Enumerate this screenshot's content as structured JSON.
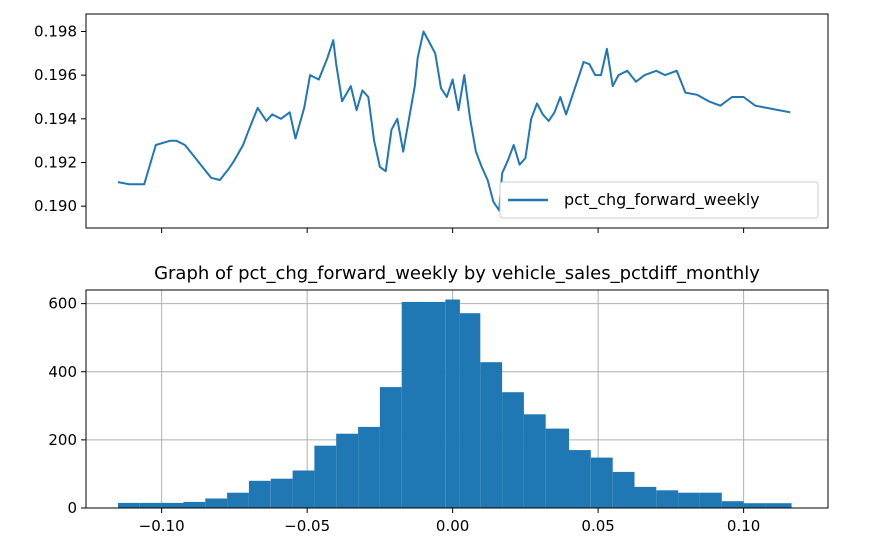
{
  "chart_data": [
    {
      "type": "line",
      "title": "",
      "xlabel": "",
      "ylabel": "",
      "xlim": [
        -0.126,
        0.129
      ],
      "ylim": [
        0.189,
        0.1988
      ],
      "yticks": [
        0.19,
        0.192,
        0.194,
        0.196,
        0.198
      ],
      "ytick_labels": [
        "0.190",
        "0.192",
        "0.194",
        "0.196",
        "0.198"
      ],
      "xticks": [
        -0.1,
        -0.05,
        0.0,
        0.05,
        0.1
      ],
      "show_xtick_labels": false,
      "grid": false,
      "legend_position": "lower-right",
      "series": [
        {
          "name": "pct_chg_forward_weekly",
          "color": "#1f77b4",
          "x": [
            -0.115,
            -0.111,
            -0.106,
            -0.102,
            -0.097,
            -0.095,
            -0.092,
            -0.089,
            -0.086,
            -0.083,
            -0.08,
            -0.077,
            -0.075,
            -0.072,
            -0.07,
            -0.067,
            -0.064,
            -0.062,
            -0.059,
            -0.056,
            -0.054,
            -0.051,
            -0.049,
            -0.046,
            -0.043,
            -0.041,
            -0.04,
            -0.038,
            -0.035,
            -0.033,
            -0.031,
            -0.029,
            -0.027,
            -0.025,
            -0.023,
            -0.021,
            -0.019,
            -0.017,
            -0.015,
            -0.013,
            -0.012,
            -0.01,
            -0.008,
            -0.006,
            -0.004,
            -0.002,
            0.0,
            0.002,
            0.004,
            0.006,
            0.008,
            0.01,
            0.012,
            0.014,
            0.016,
            0.017,
            0.019,
            0.021,
            0.023,
            0.025,
            0.027,
            0.029,
            0.031,
            0.033,
            0.035,
            0.037,
            0.039,
            0.041,
            0.043,
            0.045,
            0.047,
            0.049,
            0.051,
            0.053,
            0.055,
            0.057,
            0.06,
            0.063,
            0.066,
            0.07,
            0.073,
            0.077,
            0.08,
            0.084,
            0.088,
            0.092,
            0.096,
            0.1,
            0.104,
            0.108,
            0.112,
            0.116
          ],
          "y": [
            0.1911,
            0.191,
            0.191,
            0.1928,
            0.193,
            0.193,
            0.1928,
            0.1923,
            0.1918,
            0.1913,
            0.1912,
            0.1917,
            0.1921,
            0.1928,
            0.1935,
            0.1945,
            0.1939,
            0.1942,
            0.194,
            0.1943,
            0.1931,
            0.1945,
            0.196,
            0.1958,
            0.1968,
            0.1976,
            0.1965,
            0.1948,
            0.1955,
            0.1944,
            0.1953,
            0.195,
            0.193,
            0.1918,
            0.1916,
            0.1935,
            0.194,
            0.1925,
            0.194,
            0.1955,
            0.1968,
            0.198,
            0.1975,
            0.197,
            0.1954,
            0.195,
            0.1958,
            0.1944,
            0.196,
            0.194,
            0.1925,
            0.1918,
            0.1912,
            0.1902,
            0.1898,
            0.1915,
            0.1921,
            0.1928,
            0.1919,
            0.1922,
            0.194,
            0.1947,
            0.1942,
            0.1939,
            0.1943,
            0.195,
            0.1942,
            0.195,
            0.1958,
            0.1966,
            0.1965,
            0.196,
            0.196,
            0.1972,
            0.1955,
            0.196,
            0.1962,
            0.1957,
            0.196,
            0.1962,
            0.196,
            0.1962,
            0.1952,
            0.1951,
            0.1948,
            0.1946,
            0.195,
            0.195,
            0.1946,
            0.1945,
            0.1944,
            0.1943
          ]
        }
      ]
    },
    {
      "type": "bar",
      "title": "Graph of pct_chg_forward_weekly by vehicle_sales_pctdiff_monthly",
      "xlabel": "",
      "ylabel": "",
      "xlim": [
        -0.126,
        0.129
      ],
      "ylim": [
        0,
        640
      ],
      "yticks": [
        0,
        200,
        400,
        600
      ],
      "ytick_labels": [
        "0",
        "200",
        "400",
        "600"
      ],
      "xticks": [
        -0.1,
        -0.05,
        0.0,
        0.05,
        0.1
      ],
      "xtick_labels": [
        "−0.10",
        "−0.05",
        "0.00",
        "0.05",
        "0.10"
      ],
      "grid": true,
      "bar_color": "#1f77b4",
      "bins": [
        {
          "x0": -0.115,
          "x1": -0.1075,
          "value": 15
        },
        {
          "x0": -0.1075,
          "x1": -0.1,
          "value": 15
        },
        {
          "x0": -0.1,
          "x1": -0.0925,
          "value": 15
        },
        {
          "x0": -0.0925,
          "x1": -0.085,
          "value": 18
        },
        {
          "x0": -0.085,
          "x1": -0.0775,
          "value": 28
        },
        {
          "x0": -0.0775,
          "x1": -0.07,
          "value": 45
        },
        {
          "x0": -0.07,
          "x1": -0.0625,
          "value": 80
        },
        {
          "x0": -0.0625,
          "x1": -0.055,
          "value": 86
        },
        {
          "x0": -0.055,
          "x1": -0.0475,
          "value": 110
        },
        {
          "x0": -0.0475,
          "x1": -0.04,
          "value": 183
        },
        {
          "x0": -0.04,
          "x1": -0.0325,
          "value": 218
        },
        {
          "x0": -0.0325,
          "x1": -0.025,
          "value": 238
        },
        {
          "x0": -0.025,
          "x1": -0.0175,
          "value": 355
        },
        {
          "x0": -0.0175,
          "x1": -0.01,
          "value": 605
        },
        {
          "x0": -0.01,
          "x1": -0.0025,
          "value": 605
        },
        {
          "x0": -0.0025,
          "x1": 0.0025,
          "value": 612
        },
        {
          "x0": 0.0025,
          "x1": 0.0095,
          "value": 572
        },
        {
          "x0": 0.0095,
          "x1": 0.017,
          "value": 428
        },
        {
          "x0": 0.017,
          "x1": 0.0245,
          "value": 340
        },
        {
          "x0": 0.0245,
          "x1": 0.032,
          "value": 275
        },
        {
          "x0": 0.032,
          "x1": 0.04,
          "value": 233
        },
        {
          "x0": 0.04,
          "x1": 0.0475,
          "value": 170
        },
        {
          "x0": 0.0475,
          "x1": 0.055,
          "value": 148
        },
        {
          "x0": 0.055,
          "x1": 0.0625,
          "value": 106
        },
        {
          "x0": 0.0625,
          "x1": 0.07,
          "value": 62
        },
        {
          "x0": 0.07,
          "x1": 0.0775,
          "value": 52
        },
        {
          "x0": 0.0775,
          "x1": 0.085,
          "value": 45
        },
        {
          "x0": 0.085,
          "x1": 0.0925,
          "value": 45
        },
        {
          "x0": 0.0925,
          "x1": 0.1,
          "value": 20
        },
        {
          "x0": 0.1,
          "x1": 0.1075,
          "value": 14
        },
        {
          "x0": 0.1075,
          "x1": 0.1165,
          "value": 14
        }
      ]
    }
  ]
}
